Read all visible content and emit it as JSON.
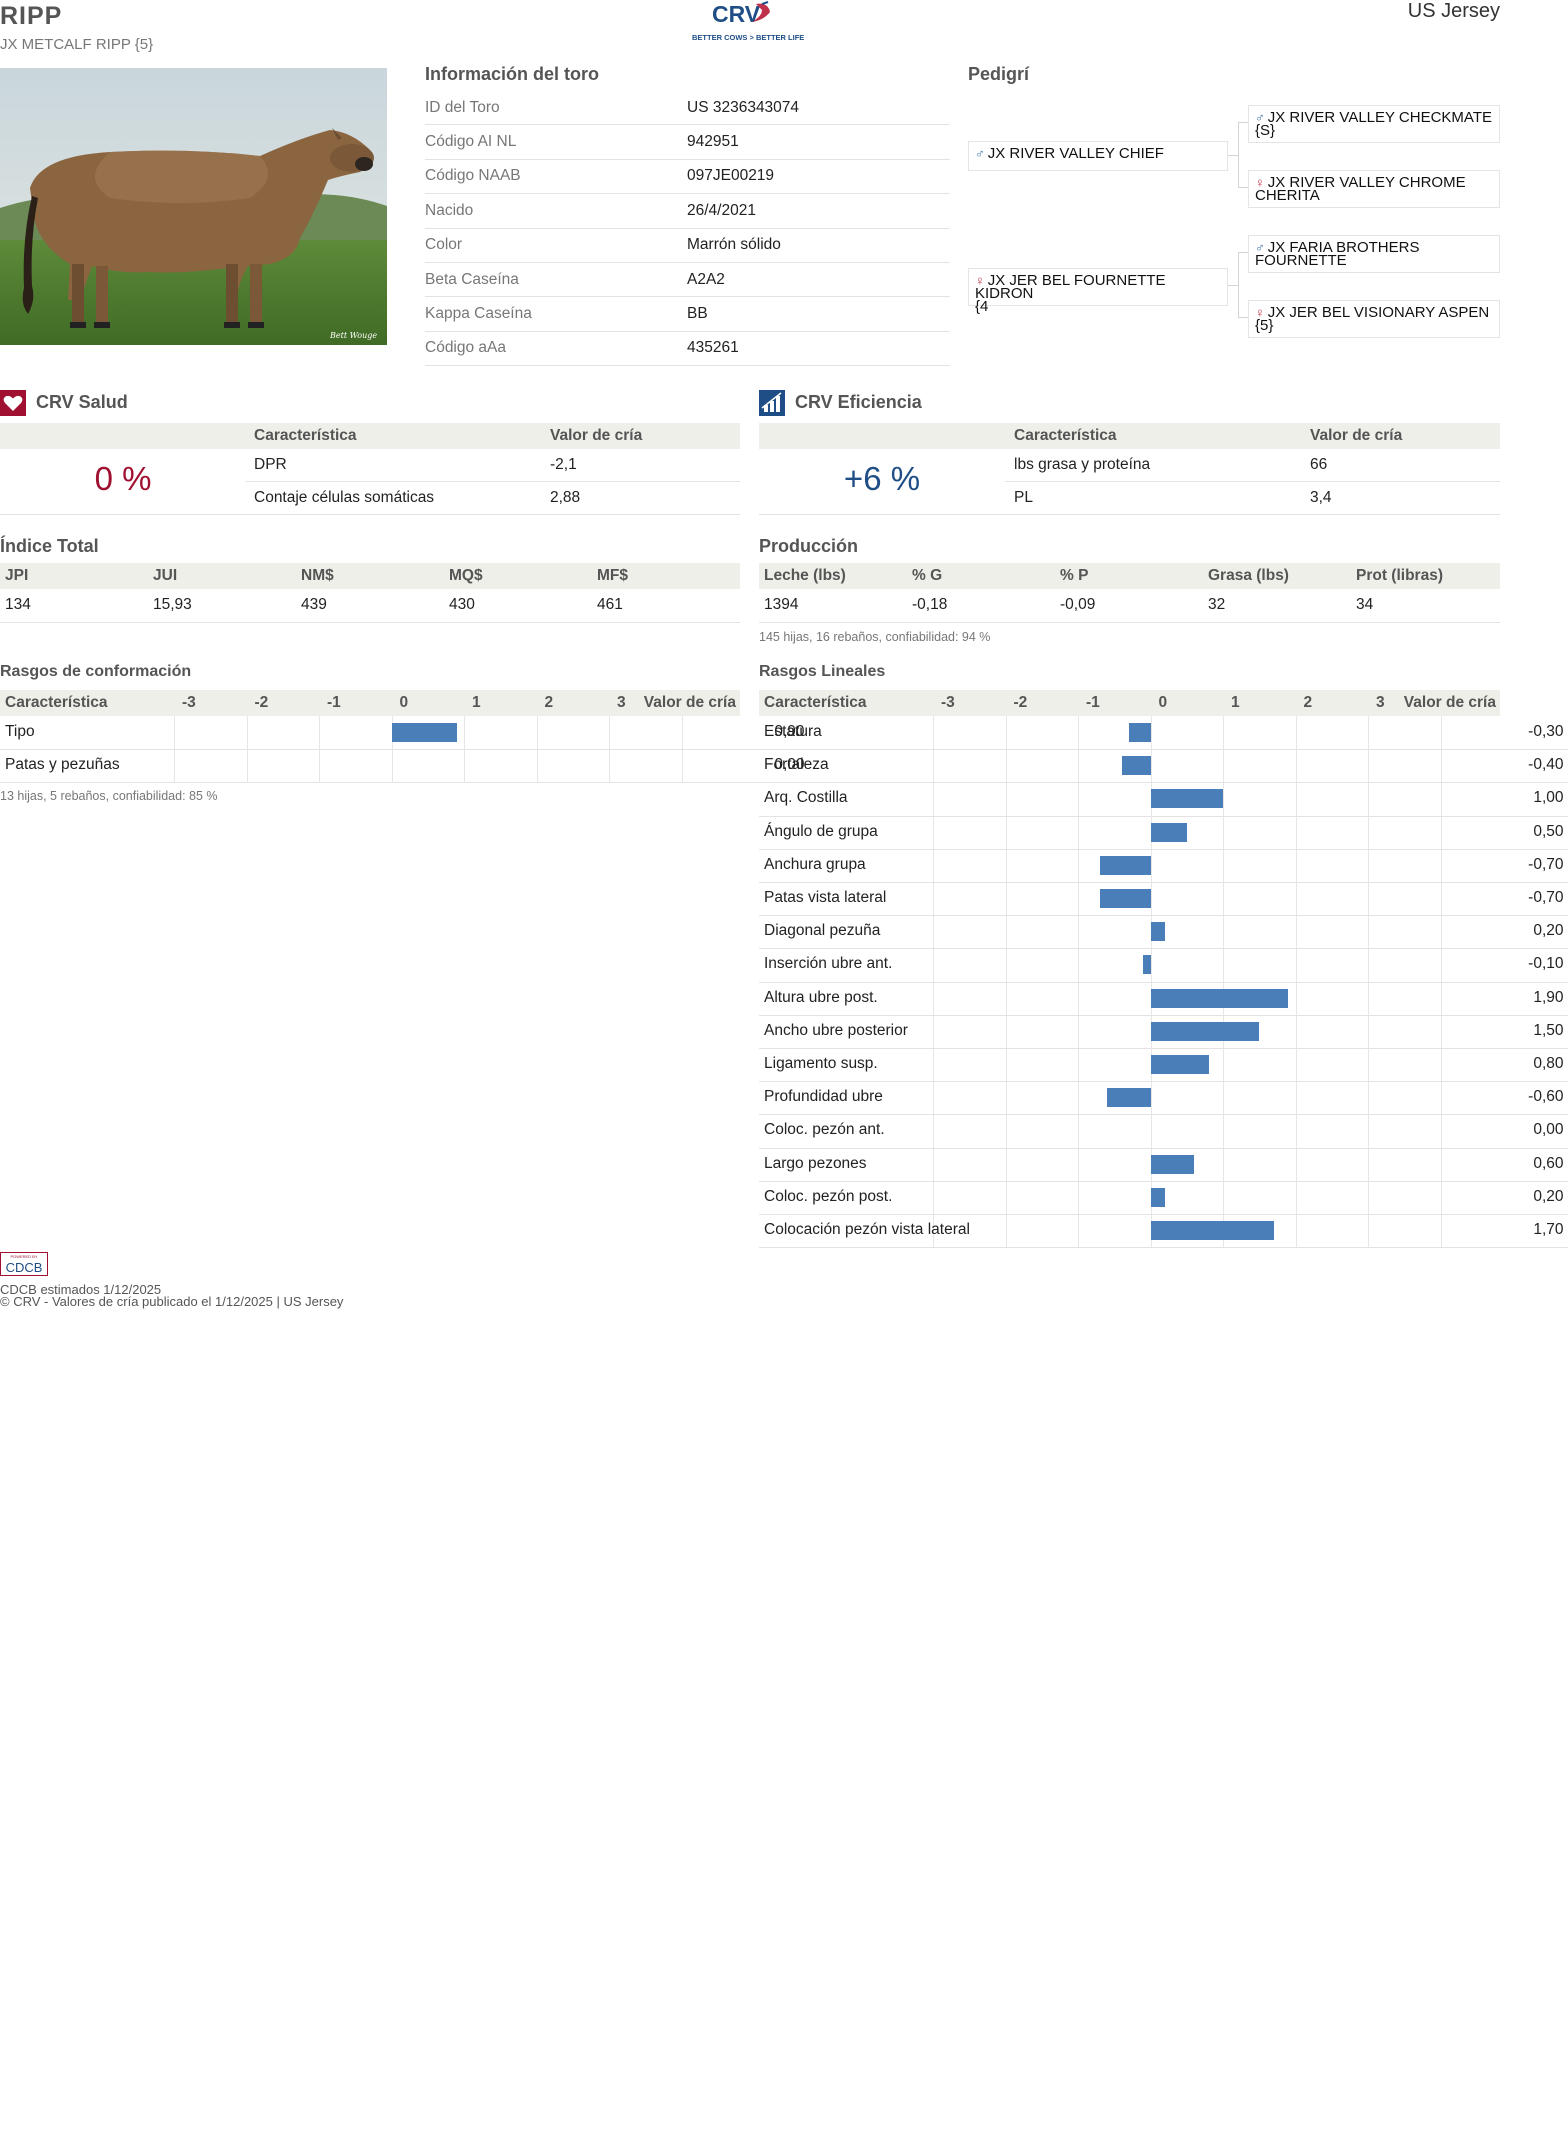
{
  "header": {
    "title": "RIPP",
    "subtitle": "JX METCALF RIPP {5}",
    "logo_text": "CRV",
    "logo_tagline": "BETTER COWS > BETTER LIFE",
    "breed": "US Jersey"
  },
  "info": {
    "title": "Información del toro",
    "rows": [
      {
        "label": "ID del Toro",
        "value": "US 3236343074"
      },
      {
        "label": "Código AI NL",
        "value": "942951"
      },
      {
        "label": "Código NAAB",
        "value": "097JE00219"
      },
      {
        "label": "Nacido",
        "value": "26/4/2021"
      },
      {
        "label": "Color",
        "value": "Marrón sólido"
      },
      {
        "label": "Beta Caseína",
        "value": "A2A2"
      },
      {
        "label": "Kappa Caseína",
        "value": "BB"
      },
      {
        "label": "Código aAa",
        "value": "435261"
      }
    ]
  },
  "pedigree": {
    "title": "Pedigrí",
    "sire": "JX RIVER VALLEY CHIEF",
    "dam": "JX JER BEL FOURNETTE KIDRON\n{4",
    "sire_sire": "JX RIVER VALLEY CHECKMATE\n{S}",
    "sire_dam": "JX RIVER VALLEY CHROME\nCHERITA",
    "dam_sire": "JX FARIA BROTHERS\nFOURNETTE",
    "dam_dam": "JX JER BEL VISIONARY ASPEN\n{5}",
    "male_symbol": "♂",
    "female_symbol": "♀"
  },
  "salud": {
    "title": "CRV Salud",
    "pct": "0 %",
    "col_char": "Característica",
    "col_val": "Valor de cría",
    "rows": [
      {
        "label": "DPR",
        "value": "-2,1"
      },
      {
        "label": "Contaje células somáticas",
        "value": "2,88"
      }
    ],
    "color": "#a01030"
  },
  "eficiencia": {
    "title": "CRV Eficiencia",
    "pct": "+6 %",
    "col_char": "Característica",
    "col_val": "Valor de cría",
    "rows": [
      {
        "label": "lbs grasa y proteína",
        "value": "66"
      },
      {
        "label": "PL",
        "value": "3,4"
      }
    ],
    "color": "#1f4e86"
  },
  "indice": {
    "title": "Índice Total",
    "headers": [
      "JPI",
      "JUI",
      "NM$",
      "MQ$",
      "MF$"
    ],
    "values": [
      "134",
      "15,93",
      "439",
      "430",
      "461"
    ]
  },
  "produccion": {
    "title": "Producción",
    "headers": [
      "Leche (lbs)",
      "% G",
      "% P",
      "Grasa (lbs)",
      "Prot (libras)"
    ],
    "values": [
      "1394",
      "-0,18",
      "-0,09",
      "32",
      "34"
    ],
    "note": "145 hijas, 16 rebaños, confiabilidad: 94 %"
  },
  "conformacion": {
    "title": "Rasgos de conformación",
    "col_char": "Característica",
    "scale": [
      "-3",
      "-2",
      "-1",
      "0",
      "1",
      "2",
      "3"
    ],
    "col_val": "Valor de cría",
    "rows": [
      {
        "label": "Tipo",
        "value": "0,90",
        "num": 0.9
      },
      {
        "label": "Patas y pezuñas",
        "value": "0,00",
        "num": 0.0
      }
    ],
    "note": "13 hijas, 5 rebaños, confiabilidad: 85 %"
  },
  "lineales": {
    "title": "Rasgos Lineales",
    "col_char": "Característica",
    "scale": [
      "-3",
      "-2",
      "-1",
      "0",
      "1",
      "2",
      "3"
    ],
    "col_val": "Valor de cría",
    "rows": [
      {
        "label": "Estatura",
        "value": "-0,30",
        "num": -0.3
      },
      {
        "label": "Fortaleza",
        "value": "-0,40",
        "num": -0.4
      },
      {
        "label": "Arq. Costilla",
        "value": "1,00",
        "num": 1.0
      },
      {
        "label": "Ángulo de grupa",
        "value": "0,50",
        "num": 0.5
      },
      {
        "label": "Anchura grupa",
        "value": "-0,70",
        "num": -0.7
      },
      {
        "label": "Patas vista lateral",
        "value": "-0,70",
        "num": -0.7
      },
      {
        "label": "Diagonal pezuña",
        "value": "0,20",
        "num": 0.2
      },
      {
        "label": "Inserción ubre ant.",
        "value": "-0,10",
        "num": -0.1
      },
      {
        "label": "Altura ubre post.",
        "value": "1,90",
        "num": 1.9
      },
      {
        "label": "Ancho ubre posterior",
        "value": "1,50",
        "num": 1.5
      },
      {
        "label": "Ligamento susp.",
        "value": "0,80",
        "num": 0.8
      },
      {
        "label": "Profundidad ubre",
        "value": "-0,60",
        "num": -0.6
      },
      {
        "label": "Coloc. pezón ant.",
        "value": "0,00",
        "num": 0.0
      },
      {
        "label": "Largo pezones",
        "value": "0,60",
        "num": 0.6
      },
      {
        "label": "Coloc. pezón post.",
        "value": "0,20",
        "num": 0.2
      },
      {
        "label": "Colocación pezón vista lateral",
        "value": "1,70",
        "num": 1.7
      }
    ]
  },
  "footer": {
    "badge_top": "POWERED BY",
    "badge_main": "CDCB",
    "line1": "CDCB estimados 1/12/2025",
    "line2": "© CRV - Valores de cría publicado el 1/12/2025 | US Jersey"
  },
  "colors": {
    "bar": "#4a7eb8",
    "header_bg": "#efefe9"
  }
}
